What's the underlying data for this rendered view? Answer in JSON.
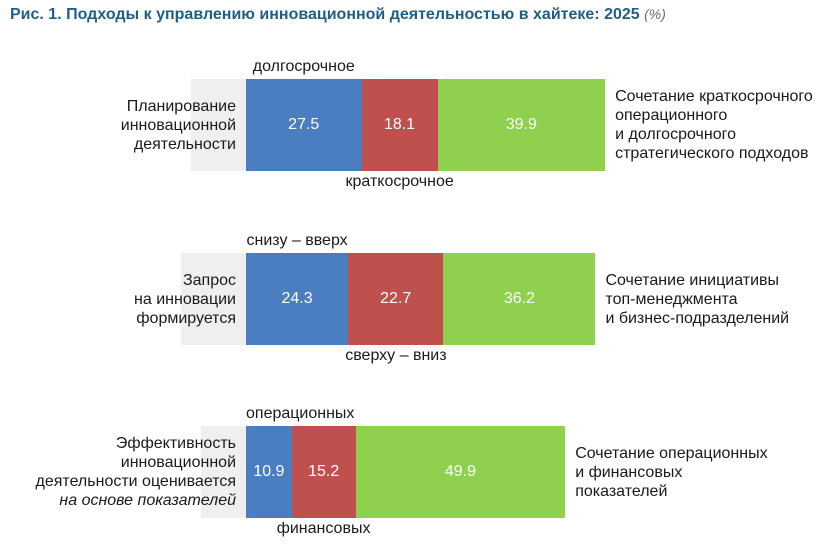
{
  "header": {
    "fig": "Рис. 1.",
    "title": "Подходы к управлению инновационной деятельностью в хайтеке: 2025",
    "unit": "(%)"
  },
  "colors": {
    "blue": "#4a7ec0",
    "red": "#c0504d",
    "green": "#8fd14f",
    "band": "#efefef"
  },
  "chart_data": {
    "type": "bar",
    "orientation": "horizontal",
    "stacked": true,
    "title": "Подходы к управлению инновационной деятельностью в хайтеке: 2025",
    "unit": "%",
    "rows": [
      {
        "label_lines": [
          "Планирование",
          "инновационной",
          "деятельности"
        ],
        "italic_line": "",
        "top_caption": "долгосрочное",
        "bottom_caption": "краткосрочное",
        "side_lines": [
          "Сочетание краткосрочного",
          "операционного",
          "и долгосрочного",
          "стратегического подходов"
        ],
        "segments": [
          {
            "value": 27.5,
            "label": "27.5",
            "color": "#4a7ec0"
          },
          {
            "value": 18.1,
            "label": "18.1",
            "color": "#c0504d"
          },
          {
            "value": 39.9,
            "label": "39.9",
            "color": "#8fd14f"
          }
        ]
      },
      {
        "label_lines": [
          "Запрос",
          "на инновации",
          "формируется"
        ],
        "italic_line": "",
        "top_caption": "снизу – вверх",
        "bottom_caption": "сверху – вниз",
        "side_lines": [
          "Сочетание инициативы",
          "топ-менеджмента",
          "и бизнес-подразделений"
        ],
        "segments": [
          {
            "value": 24.3,
            "label": "24.3",
            "color": "#4a7ec0"
          },
          {
            "value": 22.7,
            "label": "22.7",
            "color": "#c0504d"
          },
          {
            "value": 36.2,
            "label": "36.2",
            "color": "#8fd14f"
          }
        ]
      },
      {
        "label_lines": [
          "Эффективность",
          "инновационной",
          "деятельности оценивается"
        ],
        "italic_line": "на основе показателей",
        "top_caption": "операционных",
        "bottom_caption": "финансовых",
        "side_lines": [
          "Сочетание операционных",
          "и финансовых",
          "показателей"
        ],
        "segments": [
          {
            "value": 10.9,
            "label": "10.9",
            "color": "#4a7ec0"
          },
          {
            "value": 15.2,
            "label": "15.2",
            "color": "#c0504d"
          },
          {
            "value": 49.9,
            "label": "49.9",
            "color": "#8fd14f"
          }
        ]
      }
    ]
  }
}
